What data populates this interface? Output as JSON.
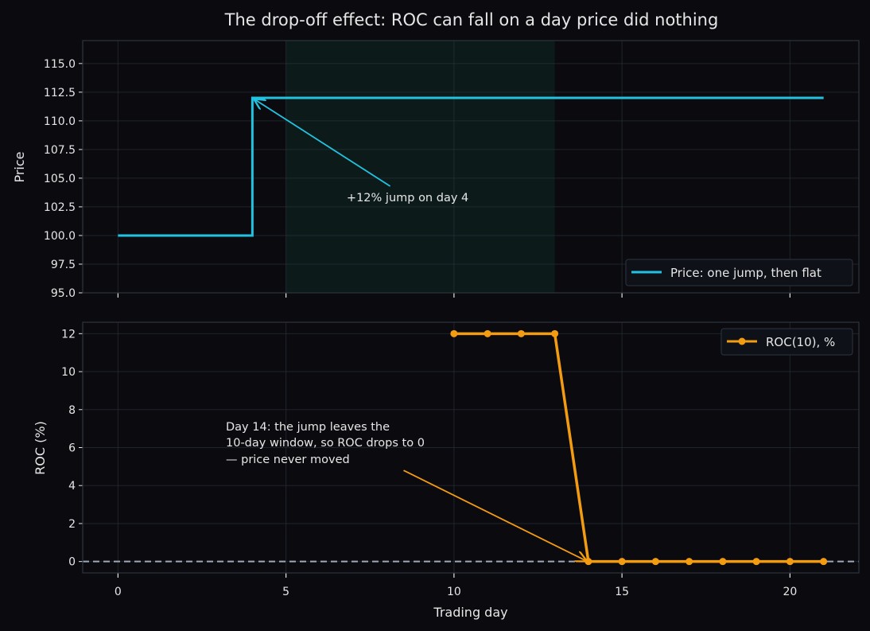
{
  "title": "The drop-off effect: ROC can fall on a day price did nothing",
  "colors": {
    "background": "#0b0b0f",
    "price": "#22c3e0",
    "roc": "#f39c12",
    "window": "#0f2a24",
    "zero_line": "#a0a8b8"
  },
  "chart_data": [
    {
      "type": "line",
      "panel": "top",
      "ylabel": "Price",
      "xlim": [
        -1.05,
        22.05
      ],
      "ylim": [
        95,
        117
      ],
      "yticks": [
        "95.0",
        "97.5",
        "100.0",
        "102.5",
        "105.0",
        "107.5",
        "110.0",
        "112.5",
        "115.0"
      ],
      "ytick_values": [
        95,
        97.5,
        100,
        102.5,
        105,
        107.5,
        110,
        112.5,
        115
      ],
      "step": "post",
      "highlight_x_range": [
        5,
        13
      ],
      "legend_position": "lower-right",
      "series": [
        {
          "name": "Price: one jump, then flat",
          "x": [
            0,
            1,
            2,
            3,
            4,
            5,
            6,
            7,
            8,
            9,
            10,
            11,
            12,
            13,
            14,
            15,
            16,
            17,
            18,
            19,
            20,
            21
          ],
          "values": [
            100,
            100,
            100,
            100,
            112,
            112,
            112,
            112,
            112,
            112,
            112,
            112,
            112,
            112,
            112,
            112,
            112,
            112,
            112,
            112,
            112,
            112
          ]
        }
      ],
      "annotation": {
        "text": "+12% jump on day 4",
        "point": [
          4,
          112
        ],
        "text_at": [
          8.1,
          104.3
        ]
      }
    },
    {
      "type": "line",
      "panel": "bottom",
      "xlabel": "Trading day",
      "ylabel": "ROC (%)",
      "xlim": [
        -1.05,
        22.05
      ],
      "ylim": [
        -0.6,
        12.6
      ],
      "xticks": [
        "0",
        "5",
        "10",
        "15",
        "20"
      ],
      "xtick_values": [
        0,
        5,
        10,
        15,
        20
      ],
      "yticks": [
        "0",
        "2",
        "4",
        "6",
        "8",
        "10",
        "12"
      ],
      "ytick_values": [
        0,
        2,
        4,
        6,
        8,
        10,
        12
      ],
      "zero_line": true,
      "legend_position": "upper-right",
      "series": [
        {
          "name": "ROC(10), %",
          "x": [
            10,
            11,
            12,
            13,
            14,
            15,
            16,
            17,
            18,
            19,
            20,
            21
          ],
          "values": [
            12,
            12,
            12,
            12,
            0,
            0,
            0,
            0,
            0,
            0,
            0,
            0
          ]
        }
      ],
      "annotation": {
        "lines": [
          "Day 14: the jump leaves the",
          "10-day window, so ROC drops to 0",
          "— price never moved"
        ],
        "point": [
          14,
          0
        ],
        "text_at": [
          8.5,
          4.8
        ]
      }
    }
  ]
}
